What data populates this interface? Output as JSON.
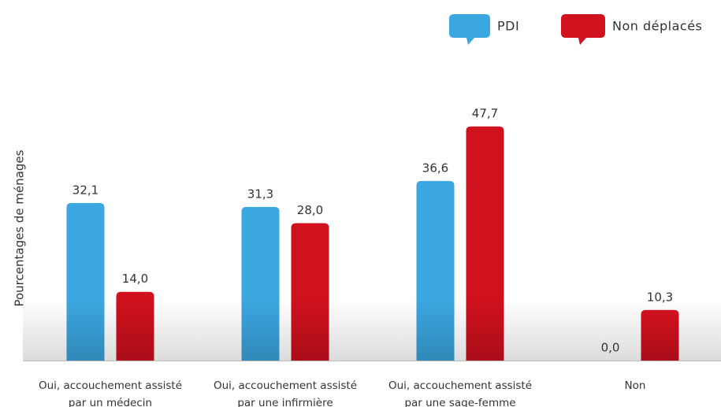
{
  "chart_data": {
    "type": "bar",
    "y_label": "Pourcentages de ménages",
    "categories": [
      "Oui, accouchement assisté par un médecin",
      "Oui, accouchement assisté par une infirmière",
      "Oui, accouchement assisté par une sage-femme",
      "Non"
    ],
    "series": [
      {
        "name": "PDI",
        "color": "#3ba7e1",
        "values": [
          32.1,
          31.3,
          36.6,
          0.0
        ],
        "value_labels": [
          "32,1",
          "31,3",
          "36,6",
          "0,0"
        ]
      },
      {
        "name": "Non déplacés",
        "color": "#d0111e",
        "values": [
          14.0,
          28.0,
          47.7,
          10.3
        ],
        "value_labels": [
          "14,0",
          "28,0",
          "47,7",
          "10,3"
        ]
      }
    ],
    "ylim": [
      0,
      60
    ],
    "legend": "top-right"
  }
}
